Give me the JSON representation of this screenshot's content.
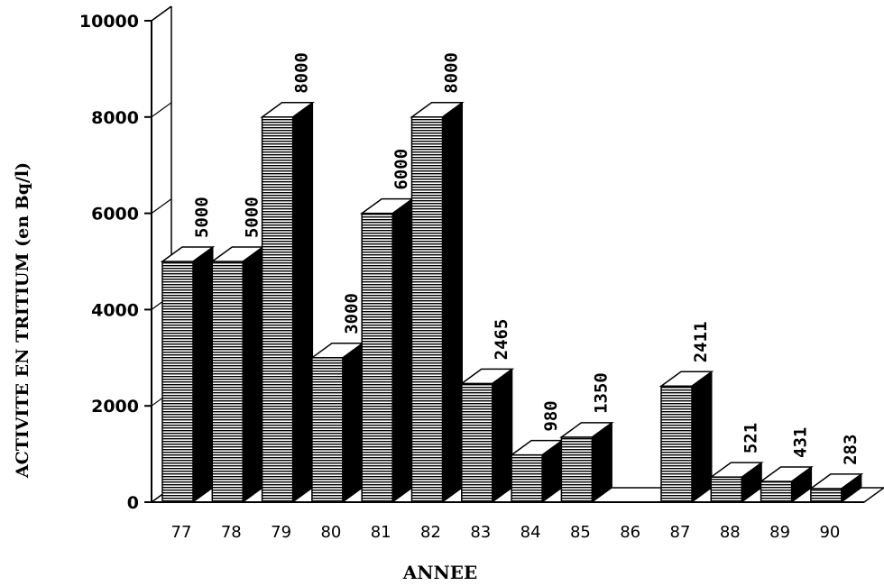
{
  "chart_data": {
    "type": "bar",
    "title": "",
    "xlabel": "ANNEE",
    "ylabel": "ACTIVITE EN TRITIUM (en Bq/l)",
    "categories": [
      "77",
      "78",
      "79",
      "80",
      "81",
      "82",
      "83",
      "84",
      "85",
      "86",
      "87",
      "88",
      "89",
      "90"
    ],
    "values": [
      5000,
      5000,
      8000,
      3000,
      6000,
      8000,
      2465,
      980,
      1350,
      null,
      2411,
      521,
      431,
      283
    ],
    "data_labels": [
      "5000",
      "5000",
      "8000",
      "3000",
      "6000",
      "8000",
      "2465",
      "980",
      "1350",
      "",
      "2411",
      "521",
      "431",
      "283"
    ],
    "ylim": [
      0,
      10000
    ],
    "yticks": [
      "0",
      "2000",
      "4000",
      "6000",
      "8000",
      "10000"
    ],
    "ytick_values": [
      0,
      2000,
      4000,
      6000,
      8000,
      10000
    ],
    "grid": false,
    "legend": "none",
    "style": "3d-bars",
    "colors": {
      "bar": "#ffffff",
      "stripe": "#000000",
      "side": "#000000",
      "axis": "#000000"
    }
  }
}
